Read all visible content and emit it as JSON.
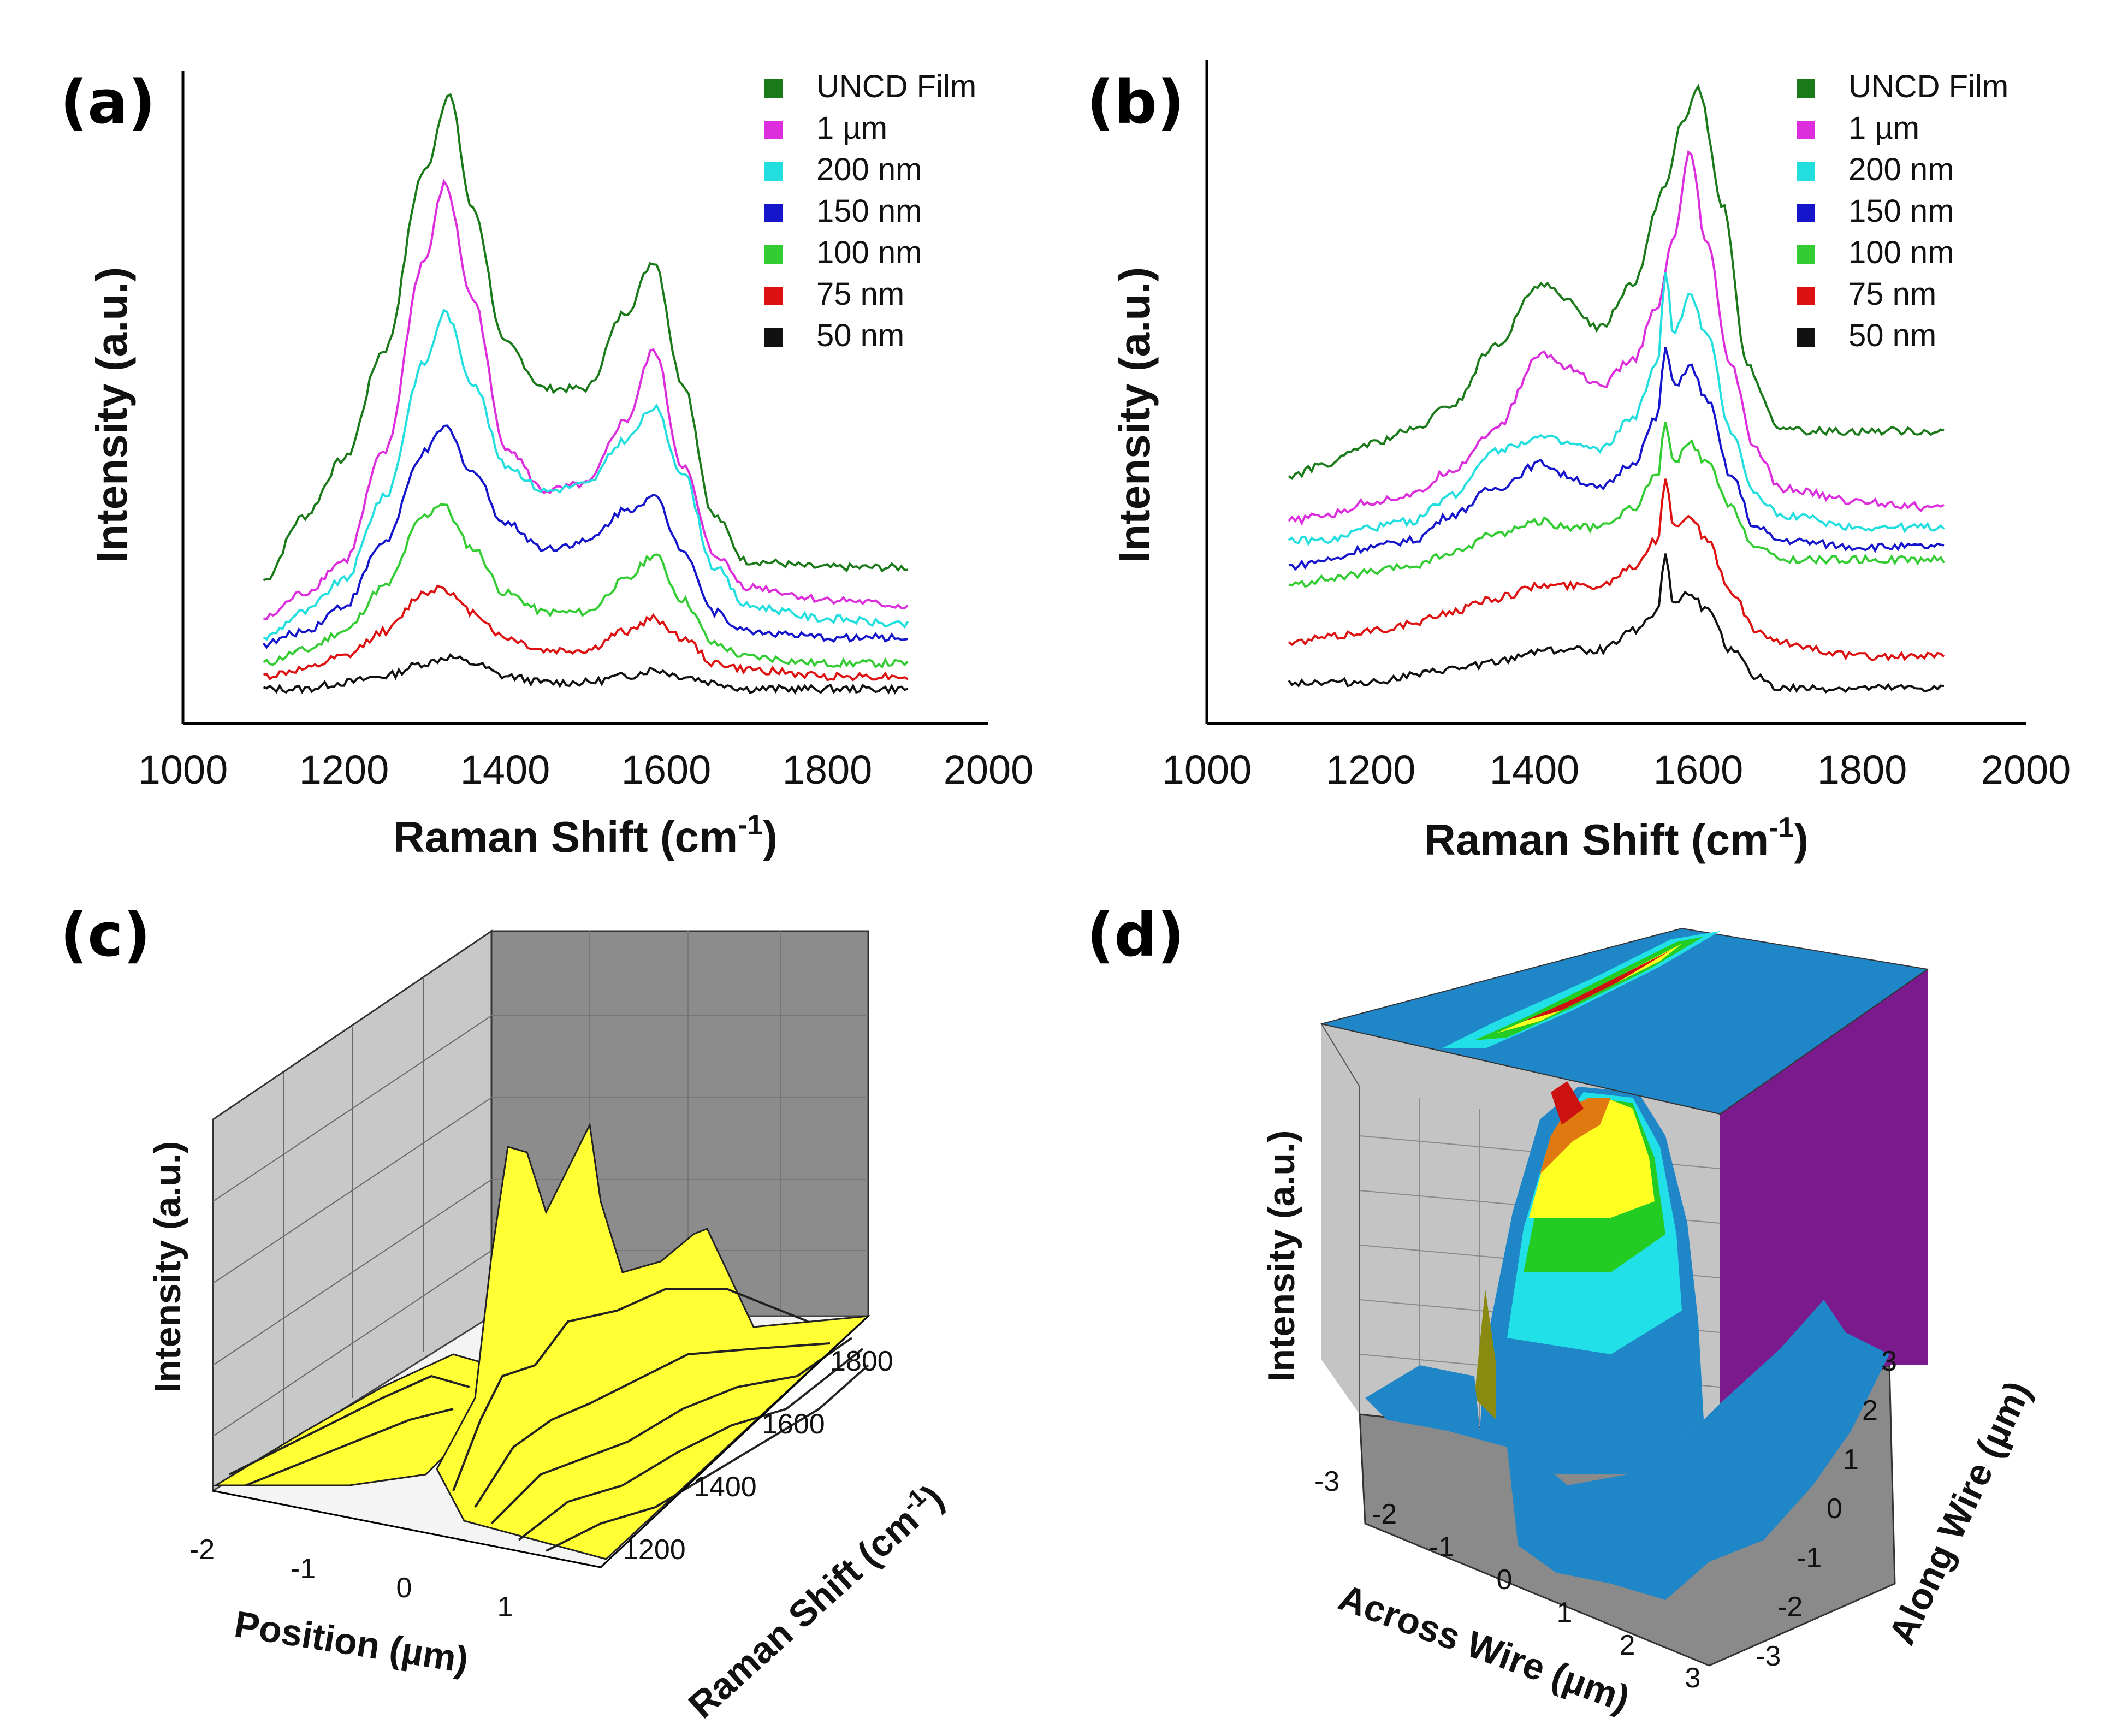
{
  "chart_data": [
    {
      "id": "a",
      "type": "line",
      "panel_label": "(a)",
      "xlabel": "Raman Shift (cm",
      "xlabel_sup": "-1",
      "xlabel_close": ")",
      "ylabel": "Intensity (a.u.)",
      "xlim": [
        1000,
        2000
      ],
      "xticks": [
        "1000",
        "1200",
        "1400",
        "1600",
        "1800",
        "2000"
      ],
      "ylim": [
        0,
        100
      ],
      "legend_position": "top-right",
      "series": [
        {
          "name": "UNCD Film",
          "color": "#1a7a1a",
          "x": [
            1100,
            1150,
            1200,
            1250,
            1300,
            1330,
            1360,
            1400,
            1450,
            1500,
            1550,
            1585,
            1620,
            1660,
            1700,
            1800,
            1900
          ],
          "values": [
            22,
            32,
            41,
            58,
            86,
            98,
            80,
            59,
            52,
            52,
            64,
            72,
            53,
            32,
            25,
            24,
            24
          ]
        },
        {
          "name": "1 µm",
          "color": "#dd2edd",
          "x": [
            1100,
            1150,
            1200,
            1250,
            1300,
            1325,
            1360,
            1400,
            1450,
            1500,
            1550,
            1585,
            1620,
            1660,
            1700,
            1800,
            1900
          ],
          "values": [
            16,
            20,
            25,
            42,
            72,
            84,
            66,
            43,
            36,
            37,
            47,
            58,
            40,
            26,
            21,
            19,
            18
          ]
        },
        {
          "name": "200 nm",
          "color": "#22dede",
          "x": [
            1100,
            1150,
            1200,
            1250,
            1300,
            1325,
            1360,
            1400,
            1450,
            1500,
            1550,
            1585,
            1620,
            1660,
            1700,
            1800,
            1900
          ],
          "values": [
            13,
            17,
            22,
            35,
            56,
            64,
            53,
            40,
            36,
            37,
            44,
            49,
            39,
            24,
            18,
            16,
            15
          ]
        },
        {
          "name": "150 nm",
          "color": "#1515cc",
          "x": [
            1100,
            1150,
            1200,
            1250,
            1300,
            1325,
            1360,
            1400,
            1450,
            1500,
            1550,
            1585,
            1620,
            1660,
            1700,
            1800,
            1900
          ],
          "values": [
            12,
            14,
            18,
            28,
            42,
            46,
            39,
            31,
            27,
            28,
            33,
            35,
            27,
            17,
            14,
            13,
            13
          ]
        },
        {
          "name": "100 nm",
          "color": "#33cc33",
          "x": [
            1100,
            1150,
            1200,
            1250,
            1300,
            1320,
            1360,
            1400,
            1450,
            1500,
            1550,
            1585,
            1620,
            1660,
            1700,
            1800,
            1900
          ],
          "values": [
            9,
            11,
            14,
            21,
            32,
            34,
            27,
            20,
            17,
            17,
            22,
            26,
            19,
            12,
            10,
            9,
            9
          ]
        },
        {
          "name": "75 nm",
          "color": "#dd1111",
          "x": [
            1100,
            1150,
            1200,
            1250,
            1300,
            1320,
            1360,
            1400,
            1450,
            1500,
            1550,
            1585,
            1620,
            1660,
            1700,
            1800,
            1900
          ],
          "values": [
            7,
            8,
            10,
            14,
            20,
            21,
            17,
            13,
            11,
            11,
            14,
            16,
            13,
            9,
            8,
            7,
            7
          ]
        },
        {
          "name": "50 nm",
          "color": "#111111",
          "x": [
            1100,
            1150,
            1200,
            1250,
            1300,
            1330,
            1360,
            1400,
            1450,
            1500,
            1550,
            1585,
            1620,
            1660,
            1700,
            1800,
            1900
          ],
          "values": [
            5,
            5,
            6,
            7,
            9,
            10,
            9,
            7,
            6,
            6,
            7,
            8,
            7,
            6,
            5,
            5,
            5
          ]
        }
      ]
    },
    {
      "id": "b",
      "type": "line",
      "panel_label": "(b)",
      "xlabel": "Raman Shift (cm",
      "xlabel_sup": "-1",
      "xlabel_close": ")",
      "ylabel": "Intensity (a.u.)",
      "xlim": [
        1000,
        2000
      ],
      "xticks": [
        "1000",
        "1200",
        "1400",
        "1600",
        "1800",
        "2000"
      ],
      "ylim": [
        0,
        100
      ],
      "legend_position": "top-right",
      "series": [
        {
          "name": "UNCD Film",
          "color": "#1a7a1a",
          "x": [
            1100,
            1150,
            1200,
            1250,
            1300,
            1350,
            1410,
            1440,
            1480,
            1520,
            1560,
            1580,
            1600,
            1630,
            1660,
            1700,
            1800,
            1900
          ],
          "values": [
            38,
            40,
            43,
            45,
            49,
            58,
            68,
            65,
            61,
            68,
            83,
            93,
            98,
            80,
            55,
            45,
            45,
            45
          ]
        },
        {
          "name": "1 µm",
          "color": "#dd2edd",
          "x": [
            1100,
            1150,
            1200,
            1250,
            1300,
            1350,
            1410,
            1440,
            1480,
            1520,
            1550,
            1570,
            1590,
            1610,
            1640,
            1670,
            1700,
            1800,
            1900
          ],
          "values": [
            31,
            32,
            34,
            35,
            39,
            45,
            57,
            55,
            52,
            56,
            64,
            75,
            88,
            74,
            55,
            42,
            36,
            34,
            33
          ]
        },
        {
          "name": "200 nm",
          "color": "#22dede",
          "x": [
            1100,
            1150,
            1200,
            1250,
            1300,
            1350,
            1410,
            1440,
            1480,
            1520,
            1550,
            1560,
            1570,
            1590,
            1610,
            1640,
            1670,
            1700,
            1800,
            1900
          ],
          "values": [
            28,
            28,
            30,
            31,
            35,
            42,
            44,
            43,
            42,
            47,
            55,
            70,
            60,
            66,
            60,
            45,
            35,
            32,
            30,
            30
          ]
        },
        {
          "name": "150 nm",
          "color": "#1515cc",
          "x": [
            1100,
            1150,
            1200,
            1250,
            1300,
            1350,
            1410,
            1440,
            1480,
            1520,
            1550,
            1560,
            1570,
            1590,
            1610,
            1640,
            1670,
            1700,
            1800,
            1900
          ],
          "values": [
            24,
            25,
            27,
            28,
            32,
            36,
            40,
            38,
            36,
            40,
            47,
            58,
            52,
            55,
            50,
            38,
            30,
            28,
            27,
            27
          ]
        },
        {
          "name": "100 nm",
          "color": "#33cc33",
          "x": [
            1100,
            1150,
            1200,
            1250,
            1300,
            1350,
            1410,
            1440,
            1480,
            1520,
            1550,
            1560,
            1570,
            1590,
            1610,
            1640,
            1670,
            1700,
            1800,
            1900
          ],
          "values": [
            21,
            22,
            23,
            24,
            26,
            29,
            31,
            30,
            30,
            33,
            38,
            46,
            40,
            43,
            40,
            33,
            27,
            25,
            25,
            25
          ]
        },
        {
          "name": "75 nm",
          "color": "#dd1111",
          "x": [
            1100,
            1150,
            1200,
            1250,
            1300,
            1350,
            1410,
            1440,
            1480,
            1520,
            1550,
            1560,
            1570,
            1590,
            1610,
            1640,
            1670,
            1700,
            1800,
            1900
          ],
          "values": [
            12,
            13,
            14,
            15,
            17,
            19,
            21,
            21,
            21,
            24,
            28,
            38,
            30,
            32,
            28,
            20,
            14,
            12,
            10,
            10
          ]
        },
        {
          "name": "50 nm",
          "color": "#111111",
          "x": [
            1100,
            1150,
            1200,
            1250,
            1300,
            1350,
            1410,
            1440,
            1480,
            1520,
            1550,
            1560,
            1570,
            1590,
            1610,
            1640,
            1670,
            1700,
            1800,
            1900
          ],
          "values": [
            6,
            6,
            6,
            7,
            8,
            9,
            11,
            11,
            11,
            14,
            17,
            26,
            18,
            20,
            17,
            11,
            7,
            5,
            5,
            5
          ]
        }
      ]
    },
    {
      "id": "c",
      "type": "surface3d",
      "panel_label": "(c)",
      "zlabel": "Intensity (a.u.)",
      "xlabel": "Position (µm)",
      "xticks": [
        "-2",
        "-1",
        "0",
        "1"
      ],
      "ylabel": "Raman Shift (cm",
      "ylabel_sup": "-1",
      "ylabel_close": ")",
      "yticks": [
        "1200",
        "1400",
        "1600",
        "1800"
      ],
      "colors": {
        "surface": "#ffff33",
        "edge": "#222222",
        "walls": "#c8c8c8",
        "back": "#8c8c8c"
      }
    },
    {
      "id": "d",
      "type": "surface3d",
      "panel_label": "(d)",
      "zlabel": "Intensity (a.u.)",
      "xlabel": "Across Wire (µm)",
      "xticks": [
        "-3",
        "-2",
        "-1",
        "0",
        "1",
        "2",
        "3"
      ],
      "ylabel": "Along Wire (µm)",
      "yticks": [
        "-3",
        "-2",
        "-1",
        "0",
        "1",
        "2",
        "3"
      ],
      "colors": {
        "base": "#1f86c8",
        "purple": "#7a1a8c",
        "walls": "#c4c4c4",
        "floor": "#8a8a8a"
      }
    }
  ]
}
